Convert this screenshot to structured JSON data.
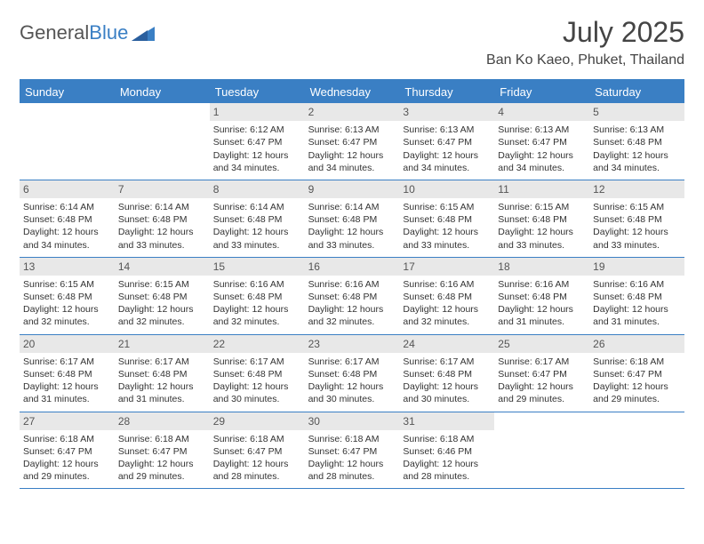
{
  "brand": {
    "text1": "General",
    "text2": "Blue",
    "text1_color": "#555555",
    "text2_color": "#3a7fc4"
  },
  "title": "July 2025",
  "location": "Ban Ko Kaeo, Phuket, Thailand",
  "colors": {
    "header_bar": "#3a7fc4",
    "day_num_bg": "#e8e8e8",
    "text": "#333333",
    "rule": "#3a7fc4"
  },
  "days_of_week": [
    "Sunday",
    "Monday",
    "Tuesday",
    "Wednesday",
    "Thursday",
    "Friday",
    "Saturday"
  ],
  "labels": {
    "sunrise": "Sunrise:",
    "sunset": "Sunset:",
    "daylight": "Daylight:"
  },
  "weeks": [
    [
      {
        "n": "",
        "empty": true
      },
      {
        "n": "",
        "empty": true
      },
      {
        "n": "1",
        "sr": "6:12 AM",
        "ss": "6:47 PM",
        "dl": "12 hours and 34 minutes."
      },
      {
        "n": "2",
        "sr": "6:13 AM",
        "ss": "6:47 PM",
        "dl": "12 hours and 34 minutes."
      },
      {
        "n": "3",
        "sr": "6:13 AM",
        "ss": "6:47 PM",
        "dl": "12 hours and 34 minutes."
      },
      {
        "n": "4",
        "sr": "6:13 AM",
        "ss": "6:47 PM",
        "dl": "12 hours and 34 minutes."
      },
      {
        "n": "5",
        "sr": "6:13 AM",
        "ss": "6:48 PM",
        "dl": "12 hours and 34 minutes."
      }
    ],
    [
      {
        "n": "6",
        "sr": "6:14 AM",
        "ss": "6:48 PM",
        "dl": "12 hours and 34 minutes."
      },
      {
        "n": "7",
        "sr": "6:14 AM",
        "ss": "6:48 PM",
        "dl": "12 hours and 33 minutes."
      },
      {
        "n": "8",
        "sr": "6:14 AM",
        "ss": "6:48 PM",
        "dl": "12 hours and 33 minutes."
      },
      {
        "n": "9",
        "sr": "6:14 AM",
        "ss": "6:48 PM",
        "dl": "12 hours and 33 minutes."
      },
      {
        "n": "10",
        "sr": "6:15 AM",
        "ss": "6:48 PM",
        "dl": "12 hours and 33 minutes."
      },
      {
        "n": "11",
        "sr": "6:15 AM",
        "ss": "6:48 PM",
        "dl": "12 hours and 33 minutes."
      },
      {
        "n": "12",
        "sr": "6:15 AM",
        "ss": "6:48 PM",
        "dl": "12 hours and 33 minutes."
      }
    ],
    [
      {
        "n": "13",
        "sr": "6:15 AM",
        "ss": "6:48 PM",
        "dl": "12 hours and 32 minutes."
      },
      {
        "n": "14",
        "sr": "6:15 AM",
        "ss": "6:48 PM",
        "dl": "12 hours and 32 minutes."
      },
      {
        "n": "15",
        "sr": "6:16 AM",
        "ss": "6:48 PM",
        "dl": "12 hours and 32 minutes."
      },
      {
        "n": "16",
        "sr": "6:16 AM",
        "ss": "6:48 PM",
        "dl": "12 hours and 32 minutes."
      },
      {
        "n": "17",
        "sr": "6:16 AM",
        "ss": "6:48 PM",
        "dl": "12 hours and 32 minutes."
      },
      {
        "n": "18",
        "sr": "6:16 AM",
        "ss": "6:48 PM",
        "dl": "12 hours and 31 minutes."
      },
      {
        "n": "19",
        "sr": "6:16 AM",
        "ss": "6:48 PM",
        "dl": "12 hours and 31 minutes."
      }
    ],
    [
      {
        "n": "20",
        "sr": "6:17 AM",
        "ss": "6:48 PM",
        "dl": "12 hours and 31 minutes."
      },
      {
        "n": "21",
        "sr": "6:17 AM",
        "ss": "6:48 PM",
        "dl": "12 hours and 31 minutes."
      },
      {
        "n": "22",
        "sr": "6:17 AM",
        "ss": "6:48 PM",
        "dl": "12 hours and 30 minutes."
      },
      {
        "n": "23",
        "sr": "6:17 AM",
        "ss": "6:48 PM",
        "dl": "12 hours and 30 minutes."
      },
      {
        "n": "24",
        "sr": "6:17 AM",
        "ss": "6:48 PM",
        "dl": "12 hours and 30 minutes."
      },
      {
        "n": "25",
        "sr": "6:17 AM",
        "ss": "6:47 PM",
        "dl": "12 hours and 29 minutes."
      },
      {
        "n": "26",
        "sr": "6:18 AM",
        "ss": "6:47 PM",
        "dl": "12 hours and 29 minutes."
      }
    ],
    [
      {
        "n": "27",
        "sr": "6:18 AM",
        "ss": "6:47 PM",
        "dl": "12 hours and 29 minutes."
      },
      {
        "n": "28",
        "sr": "6:18 AM",
        "ss": "6:47 PM",
        "dl": "12 hours and 29 minutes."
      },
      {
        "n": "29",
        "sr": "6:18 AM",
        "ss": "6:47 PM",
        "dl": "12 hours and 28 minutes."
      },
      {
        "n": "30",
        "sr": "6:18 AM",
        "ss": "6:47 PM",
        "dl": "12 hours and 28 minutes."
      },
      {
        "n": "31",
        "sr": "6:18 AM",
        "ss": "6:46 PM",
        "dl": "12 hours and 28 minutes."
      },
      {
        "n": "",
        "empty": true
      },
      {
        "n": "",
        "empty": true
      }
    ]
  ]
}
